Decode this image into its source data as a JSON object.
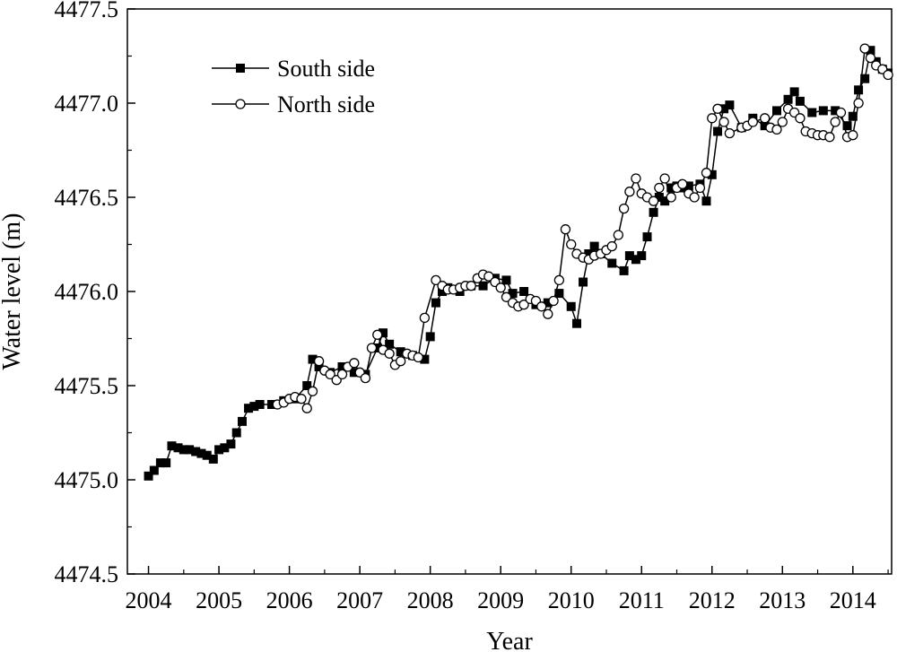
{
  "chart_data": {
    "type": "line",
    "title": "",
    "xlabel": "Year",
    "ylabel": "Water level (m)",
    "xlim": [
      2003.7,
      2014.55
    ],
    "ylim": [
      4474.5,
      4477.5
    ],
    "x_ticks": [
      2004,
      2005,
      2006,
      2007,
      2008,
      2009,
      2010,
      2011,
      2012,
      2013,
      2014
    ],
    "y_ticks": [
      4474.5,
      4475.0,
      4475.5,
      4476.0,
      4476.5,
      4477.0,
      4477.5
    ],
    "y_tick_labels": [
      "4474.5",
      "4475.0",
      "4475.5",
      "4476.0",
      "4476.5",
      "4477.0",
      "4477.5"
    ],
    "legend_position": "top-left",
    "grid": false,
    "series": [
      {
        "name": "South side",
        "marker": "filled-square",
        "color": "#000000",
        "x": [
          2004.0,
          2004.08,
          2004.17,
          2004.25,
          2004.33,
          2004.42,
          2004.5,
          2004.58,
          2004.67,
          2004.75,
          2004.83,
          2004.92,
          2005.0,
          2005.08,
          2005.17,
          2005.25,
          2005.33,
          2005.42,
          2005.5,
          2005.58,
          2005.75,
          2005.92,
          2006.08,
          2006.25,
          2006.33,
          2006.42,
          2006.58,
          2006.75,
          2006.92,
          2007.08,
          2007.25,
          2007.33,
          2007.42,
          2007.58,
          2007.75,
          2007.92,
          2008.0,
          2008.08,
          2008.17,
          2008.25,
          2008.42,
          2008.58,
          2008.75,
          2008.92,
          2009.08,
          2009.17,
          2009.33,
          2009.5,
          2009.67,
          2009.83,
          2010.0,
          2010.08,
          2010.17,
          2010.25,
          2010.33,
          2010.42,
          2010.58,
          2010.75,
          2010.83,
          2010.92,
          2011.0,
          2011.08,
          2011.17,
          2011.25,
          2011.33,
          2011.42,
          2011.5,
          2011.58,
          2011.67,
          2011.83,
          2011.92,
          2012.0,
          2012.08,
          2012.17,
          2012.25,
          2012.42,
          2012.58,
          2012.75,
          2012.92,
          2013.08,
          2013.17,
          2013.25,
          2013.42,
          2013.58,
          2013.75,
          2013.92,
          2014.0,
          2014.08,
          2014.17,
          2014.25,
          2014.33,
          2014.42,
          2014.5
        ],
        "y": [
          4475.02,
          4475.05,
          4475.09,
          4475.09,
          4475.18,
          4475.17,
          4475.16,
          4475.16,
          4475.15,
          4475.14,
          4475.13,
          4475.11,
          4475.16,
          4475.17,
          4475.19,
          4475.25,
          4475.31,
          4475.38,
          4475.39,
          4475.4,
          4475.4,
          4475.42,
          4475.43,
          4475.5,
          4475.64,
          4475.6,
          4475.57,
          4475.6,
          4475.57,
          4475.56,
          4475.7,
          4475.78,
          4475.72,
          4475.68,
          4475.66,
          4475.64,
          4475.76,
          4475.94,
          4476.0,
          4476.02,
          4476.0,
          4476.03,
          4476.03,
          4476.07,
          4476.06,
          4475.99,
          4476.0,
          4475.93,
          4475.94,
          4475.99,
          4475.92,
          4475.83,
          4476.05,
          4476.2,
          4476.24,
          4476.2,
          4476.15,
          4476.11,
          4476.19,
          4476.17,
          4476.19,
          4476.29,
          4476.42,
          4476.5,
          4476.48,
          4476.55,
          4476.56,
          4476.55,
          4476.56,
          4476.57,
          4476.48,
          4476.62,
          4476.85,
          4476.97,
          4476.99,
          4476.87,
          4476.92,
          4476.88,
          4476.96,
          4477.02,
          4477.06,
          4477.01,
          4476.95,
          4476.96,
          4476.96,
          4476.88,
          4476.93,
          4477.07,
          4477.13,
          4477.28,
          4477.22,
          4477.18,
          4477.16
        ]
      },
      {
        "name": "North side",
        "marker": "open-circle",
        "color": "#000000",
        "x": [
          2005.83,
          2005.92,
          2006.0,
          2006.08,
          2006.17,
          2006.25,
          2006.33,
          2006.42,
          2006.5,
          2006.58,
          2006.67,
          2006.75,
          2006.83,
          2006.92,
          2007.0,
          2007.08,
          2007.17,
          2007.25,
          2007.33,
          2007.42,
          2007.5,
          2007.58,
          2007.67,
          2007.75,
          2007.83,
          2007.92,
          2008.08,
          2008.17,
          2008.25,
          2008.33,
          2008.42,
          2008.5,
          2008.58,
          2008.67,
          2008.75,
          2008.83,
          2008.92,
          2009.0,
          2009.08,
          2009.17,
          2009.25,
          2009.33,
          2009.42,
          2009.5,
          2009.58,
          2009.67,
          2009.75,
          2009.83,
          2009.92,
          2010.0,
          2010.08,
          2010.17,
          2010.25,
          2010.33,
          2010.42,
          2010.5,
          2010.58,
          2010.67,
          2010.75,
          2010.83,
          2010.92,
          2011.0,
          2011.08,
          2011.17,
          2011.25,
          2011.33,
          2011.42,
          2011.5,
          2011.58,
          2011.67,
          2011.75,
          2011.83,
          2011.92,
          2012.0,
          2012.08,
          2012.17,
          2012.25,
          2012.42,
          2012.5,
          2012.58,
          2012.75,
          2012.83,
          2012.92,
          2013.0,
          2013.08,
          2013.17,
          2013.25,
          2013.33,
          2013.42,
          2013.5,
          2013.58,
          2013.67,
          2013.75,
          2013.83,
          2013.92,
          2014.0,
          2014.08,
          2014.17,
          2014.25,
          2014.33,
          2014.42,
          2014.5
        ],
        "y": [
          4475.4,
          4475.41,
          4475.43,
          4475.44,
          4475.43,
          4475.38,
          4475.47,
          4475.63,
          4475.58,
          4475.56,
          4475.53,
          4475.56,
          4475.6,
          4475.62,
          4475.57,
          4475.54,
          4475.7,
          4475.77,
          4475.69,
          4475.67,
          4475.61,
          4475.63,
          4475.67,
          4475.66,
          4475.65,
          4475.86,
          4476.06,
          4476.03,
          4476.01,
          4476.01,
          4476.02,
          4476.03,
          4476.03,
          4476.07,
          4476.09,
          4476.08,
          4476.05,
          4476.02,
          4475.97,
          4475.94,
          4475.92,
          4475.93,
          4475.96,
          4475.95,
          4475.92,
          4475.88,
          4475.95,
          4476.06,
          4476.33,
          4476.25,
          4476.2,
          4476.18,
          4476.17,
          4476.19,
          4476.2,
          4476.22,
          4476.24,
          4476.3,
          4476.44,
          4476.53,
          4476.6,
          4476.52,
          4476.5,
          4476.48,
          4476.55,
          4476.6,
          4476.5,
          4476.55,
          4476.57,
          4476.52,
          4476.5,
          4476.55,
          4476.63,
          4476.92,
          4476.97,
          4476.9,
          4476.84,
          4476.87,
          4476.88,
          4476.9,
          4476.92,
          4476.87,
          4476.86,
          4476.9,
          4476.97,
          4476.95,
          4476.92,
          4476.85,
          4476.84,
          4476.83,
          4476.83,
          4476.82,
          4476.9,
          4476.95,
          4476.82,
          4476.83,
          4477.0,
          4477.29,
          4477.24,
          4477.2,
          4477.18,
          4477.15
        ]
      }
    ]
  }
}
